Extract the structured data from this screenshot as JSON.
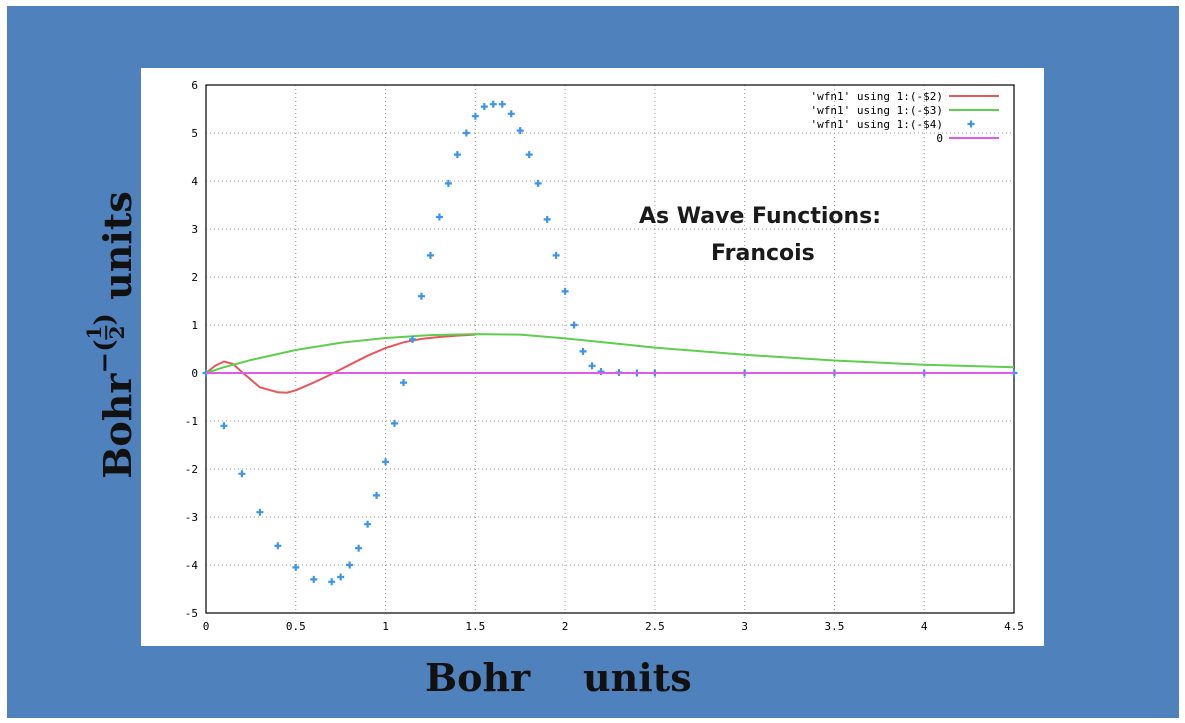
{
  "chart_data": {
    "type": "line",
    "xlim": [
      0,
      4.5
    ],
    "ylim": [
      -5,
      6
    ],
    "x_ticks": [
      "0",
      "0.5",
      "1",
      "1.5",
      "2",
      "2.5",
      "3",
      "3.5",
      "4",
      "4.5"
    ],
    "y_ticks": [
      "6",
      "5",
      "4",
      "3",
      "2",
      "1",
      "0",
      "-1",
      "-2",
      "-3",
      "-4",
      "-5"
    ],
    "x_tick_values": [
      0,
      0.5,
      1,
      1.5,
      2,
      2.5,
      3,
      3.5,
      4,
      4.5
    ],
    "y_tick_values": [
      6,
      5,
      4,
      3,
      2,
      1,
      0,
      -1,
      -2,
      -3,
      -4,
      -5
    ],
    "xlabel": "Bohr units",
    "ylabel": {
      "base": "Bohr",
      "sign": "−",
      "num": "1",
      "den": "2",
      "suffix": "units"
    },
    "annotation": [
      "As Wave Functions:",
      "Francois"
    ],
    "grid": true,
    "legend_position": "top-right",
    "series": [
      {
        "name": "'wfn1' using 1:(-$2)",
        "style": "line",
        "color": "#e8575a",
        "x": [
          0,
          0.05,
          0.1,
          0.15,
          0.2,
          0.3,
          0.4,
          0.45,
          0.5,
          0.6,
          0.7,
          0.8,
          0.9,
          1.0,
          1.1,
          1.2,
          1.3,
          1.4,
          1.5
        ],
        "y": [
          0,
          0.15,
          0.24,
          0.19,
          0.02,
          -0.3,
          -0.4,
          -0.41,
          -0.36,
          -0.2,
          -0.02,
          0.17,
          0.36,
          0.52,
          0.64,
          0.71,
          0.75,
          0.78,
          0.8
        ]
      },
      {
        "name": "'wfn1' using 1:(-$3)",
        "style": "line",
        "color": "#5fce4f",
        "x": [
          0,
          0.1,
          0.25,
          0.5,
          0.75,
          1.0,
          1.25,
          1.5,
          1.75,
          2.0,
          2.5,
          3.0,
          3.5,
          4.0,
          4.5
        ],
        "y": [
          0,
          0.12,
          0.27,
          0.48,
          0.63,
          0.73,
          0.79,
          0.81,
          0.8,
          0.72,
          0.53,
          0.38,
          0.26,
          0.17,
          0.12
        ]
      },
      {
        "name": "'wfn1' using 1:(-$4)",
        "style": "points",
        "color": "#3d95ea",
        "x": [
          0,
          0.1,
          0.2,
          0.3,
          0.4,
          0.5,
          0.6,
          0.7,
          0.75,
          0.8,
          0.85,
          0.9,
          0.95,
          1.0,
          1.05,
          1.1,
          1.15,
          1.2,
          1.25,
          1.3,
          1.35,
          1.4,
          1.45,
          1.5,
          1.55,
          1.6,
          1.65,
          1.7,
          1.75,
          1.8,
          1.85,
          1.9,
          1.95,
          2.0,
          2.05,
          2.1,
          2.15,
          2.2,
          2.3,
          2.4,
          2.5,
          3.0,
          3.5,
          4.0,
          4.5
        ],
        "y": [
          0,
          -1.1,
          -2.1,
          -2.9,
          -3.6,
          -4.05,
          -4.3,
          -4.35,
          -4.25,
          -4.0,
          -3.65,
          -3.15,
          -2.55,
          -1.85,
          -1.05,
          -0.2,
          0.7,
          1.6,
          2.45,
          3.25,
          3.95,
          4.55,
          5.0,
          5.35,
          5.55,
          5.6,
          5.6,
          5.4,
          5.05,
          4.55,
          3.95,
          3.2,
          2.45,
          1.7,
          1.0,
          0.45,
          0.15,
          0.03,
          0.01,
          0,
          0,
          0,
          0,
          0,
          0
        ]
      },
      {
        "name": "0",
        "style": "line",
        "color": "#e05ce8",
        "x": [
          0,
          4.5
        ],
        "y": [
          0,
          0
        ]
      }
    ]
  }
}
